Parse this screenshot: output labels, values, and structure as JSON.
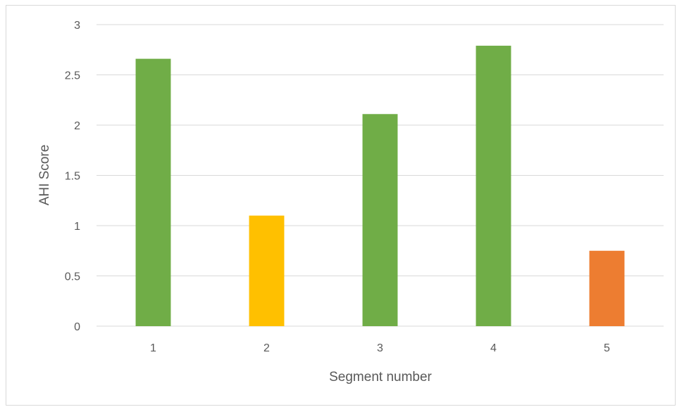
{
  "chart_data": {
    "type": "bar",
    "categories": [
      "1",
      "2",
      "3",
      "4",
      "5"
    ],
    "values": [
      2.66,
      1.1,
      2.11,
      2.79,
      0.75
    ],
    "bar_colors": [
      "#70ad47",
      "#ffc000",
      "#70ad47",
      "#70ad47",
      "#ed7d31"
    ],
    "xlabel": "Segment number",
    "ylabel": "AHI Score",
    "ylim": [
      0,
      3
    ],
    "yticks": [
      "0",
      "0.5",
      "1",
      "1.5",
      "2",
      "2.5",
      "3"
    ],
    "grid": true,
    "gridline_color": "#d9d9d9"
  }
}
